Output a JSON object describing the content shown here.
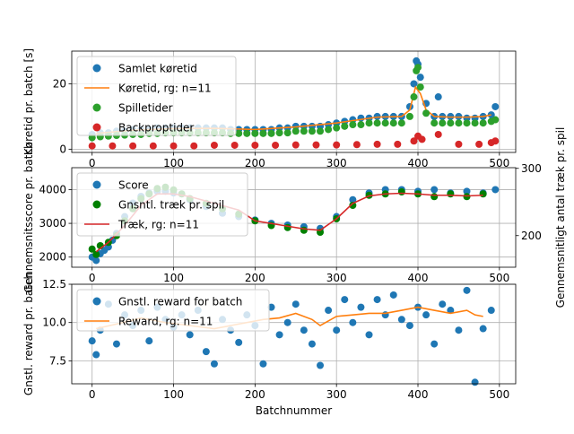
{
  "chart_data": [
    {
      "type": "scatter",
      "xlabel": "",
      "ylabel": "Køretid pr. batch [s]",
      "xlim": [
        -25,
        520
      ],
      "ylim": [
        -1,
        30
      ],
      "xticks": [
        0,
        100,
        200,
        300,
        400,
        500
      ],
      "yticks": [
        0,
        20
      ],
      "grid": true,
      "legend_position": "upper left",
      "series": [
        {
          "name": "Samlet køretid",
          "kind": "points",
          "color": "#1f77b4",
          "x": [
            0,
            10,
            20,
            30,
            40,
            50,
            60,
            70,
            80,
            90,
            100,
            110,
            120,
            130,
            140,
            150,
            160,
            170,
            180,
            190,
            200,
            210,
            220,
            230,
            240,
            250,
            260,
            270,
            280,
            290,
            300,
            310,
            320,
            330,
            340,
            350,
            360,
            370,
            380,
            390,
            395,
            398,
            400,
            403,
            410,
            420,
            425,
            430,
            440,
            450,
            460,
            470,
            480,
            490,
            495
          ],
          "y": [
            4.5,
            5,
            5,
            5.5,
            5.5,
            6,
            6,
            6,
            6.5,
            6.5,
            6.5,
            6.5,
            6.5,
            6.5,
            6.5,
            6.5,
            6.5,
            6,
            6,
            6,
            6,
            6,
            6,
            6.5,
            6.5,
            7,
            7,
            7,
            7,
            7.5,
            8,
            8.5,
            9,
            9.5,
            9.5,
            10,
            10,
            10,
            10,
            13,
            20,
            27,
            26,
            22,
            14,
            10,
            16,
            10,
            10,
            10,
            9.5,
            9.5,
            10,
            10.5,
            13
          ]
        },
        {
          "name": "Køretid, rg: n=11",
          "kind": "line",
          "color": "#ff7f0e",
          "x": [
            5,
            50,
            100,
            150,
            200,
            250,
            300,
            350,
            380,
            390,
            397,
            403,
            410,
            420,
            440,
            460,
            480,
            490
          ],
          "y": [
            4.8,
            5.8,
            6.3,
            6.4,
            6,
            6.8,
            8,
            9.8,
            10,
            12,
            19,
            17,
            12,
            10,
            9.8,
            9.8,
            10,
            10.5
          ]
        },
        {
          "name": "Spilletider",
          "kind": "points",
          "color": "#2ca02c",
          "x": [
            0,
            10,
            20,
            30,
            40,
            50,
            60,
            70,
            80,
            90,
            100,
            110,
            120,
            130,
            140,
            150,
            160,
            170,
            180,
            190,
            200,
            210,
            220,
            230,
            240,
            250,
            260,
            270,
            280,
            290,
            300,
            310,
            320,
            330,
            340,
            350,
            360,
            370,
            380,
            390,
            395,
            398,
            400,
            403,
            410,
            420,
            430,
            440,
            450,
            460,
            470,
            480,
            490,
            495
          ],
          "y": [
            3.5,
            3.8,
            4,
            4.2,
            4.3,
            4.5,
            4.5,
            4.8,
            4.8,
            5,
            5,
            5,
            5,
            5,
            5,
            5,
            5,
            4.8,
            4.8,
            4.8,
            4.8,
            4.8,
            4.8,
            5,
            5,
            5.5,
            5.5,
            5.5,
            5.5,
            6,
            6.5,
            7,
            7.5,
            7.5,
            8,
            8,
            8,
            8,
            8,
            10,
            16,
            24,
            25,
            19,
            11,
            8,
            8,
            8,
            8,
            8,
            8,
            8,
            8.5,
            9
          ]
        },
        {
          "name": "Backproptider",
          "kind": "points",
          "color": "#d62728",
          "x": [
            0,
            25,
            50,
            75,
            100,
            125,
            150,
            175,
            200,
            225,
            250,
            275,
            300,
            325,
            350,
            375,
            395,
            400,
            405,
            425,
            450,
            475,
            490,
            495
          ],
          "y": [
            1,
            1,
            1,
            1,
            1,
            1,
            1.2,
            1.2,
            1.2,
            1.2,
            1.3,
            1.3,
            1.3,
            1.4,
            1.5,
            1.5,
            2.5,
            4,
            3,
            4.5,
            1.5,
            1.5,
            2,
            2.5
          ]
        }
      ]
    },
    {
      "type": "scatter",
      "xlabel": "",
      "ylabel": "Gennemsnitsscore pr. batch",
      "ylabel_right": "Gennemsnitligt antal træk pr. spil",
      "xlim": [
        -25,
        520
      ],
      "ylim": [
        1700,
        4650
      ],
      "ylim_right": [
        153,
        301
      ],
      "xticks": [
        0,
        100,
        200,
        300,
        400,
        500
      ],
      "yticks": [
        2000,
        3000,
        4000
      ],
      "yticks_right": [
        200,
        300
      ],
      "grid": true,
      "legend_position": "upper left",
      "series": [
        {
          "name": "Score",
          "kind": "points",
          "color": "#1f77b4",
          "x": [
            0,
            5,
            10,
            15,
            20,
            25,
            30,
            40,
            50,
            60,
            70,
            80,
            90,
            100,
            120,
            140,
            160,
            180,
            200,
            220,
            240,
            260,
            280,
            300,
            320,
            340,
            360,
            380,
            400,
            420,
            440,
            460,
            480,
            495
          ],
          "y": [
            2000,
            1900,
            2100,
            2200,
            2300,
            2500,
            2700,
            3200,
            3600,
            3800,
            3900,
            3950,
            3950,
            3900,
            3700,
            3500,
            3300,
            3200,
            3100,
            3000,
            2950,
            2900,
            2850,
            3200,
            3700,
            3900,
            4000,
            4000,
            3950,
            4000,
            3900,
            3950,
            3900,
            4000
          ]
        },
        {
          "name": "Gnsntl. træk pr. spil",
          "kind": "points",
          "color": "#008000",
          "x": [
            0,
            5,
            10,
            20,
            30,
            40,
            50,
            60,
            70,
            80,
            90,
            100,
            110,
            120,
            140,
            160,
            180,
            200,
            220,
            240,
            260,
            280,
            300,
            320,
            340,
            360,
            380,
            400,
            420,
            440,
            460,
            480
          ],
          "y": [
            180,
            172,
            185,
            190,
            200,
            222,
            240,
            255,
            262,
            270,
            272,
            268,
            262,
            255,
            248,
            240,
            232,
            222,
            215,
            212,
            208,
            205,
            225,
            245,
            260,
            262,
            265,
            262,
            258,
            262,
            258,
            262
          ]
        },
        {
          "name": "Træk, rg: n=11",
          "kind": "line",
          "color": "#d62728",
          "x": [
            5,
            20,
            40,
            60,
            80,
            100,
            120,
            150,
            180,
            200,
            230,
            260,
            280,
            300,
            320,
            340,
            360,
            380,
            400,
            420,
            440,
            460,
            480
          ],
          "y": [
            176,
            190,
            215,
            245,
            262,
            262,
            258,
            248,
            238,
            222,
            216,
            210,
            208,
            225,
            248,
            259,
            262,
            263,
            262,
            260,
            260,
            259,
            260
          ]
        }
      ]
    },
    {
      "type": "scatter",
      "xlabel": "Batchnummer",
      "ylabel": "Gnstl. reward pr. batch",
      "xlim": [
        -25,
        520
      ],
      "ylim": [
        6,
        12.5
      ],
      "xticks": [
        0,
        100,
        200,
        300,
        400,
        500
      ],
      "yticks": [
        7.5,
        10.0,
        12.5
      ],
      "grid": true,
      "legend_position": "upper left",
      "series": [
        {
          "name": "Gnstl. reward for batch",
          "kind": "points",
          "color": "#1f77b4",
          "x": [
            0,
            5,
            10,
            20,
            30,
            40,
            50,
            60,
            70,
            80,
            90,
            100,
            110,
            120,
            130,
            140,
            150,
            160,
            170,
            180,
            190,
            200,
            210,
            220,
            230,
            240,
            250,
            260,
            270,
            280,
            290,
            300,
            310,
            320,
            330,
            340,
            350,
            360,
            370,
            380,
            390,
            400,
            410,
            420,
            430,
            440,
            450,
            460,
            470,
            480,
            490
          ],
          "y": [
            8.8,
            7.9,
            9.5,
            11.2,
            8.6,
            10.5,
            9.8,
            10.8,
            8.8,
            11,
            10.2,
            9.7,
            10.5,
            9.2,
            10.8,
            8.1,
            7.3,
            10.2,
            9.5,
            8.7,
            10.5,
            9.8,
            7.3,
            11,
            9.2,
            10,
            11.2,
            9.5,
            8.6,
            7.2,
            10.8,
            9.5,
            11.5,
            10,
            11,
            9.2,
            11.5,
            10.5,
            11.8,
            10.2,
            9.8,
            11,
            10.5,
            8.6,
            11.2,
            10.8,
            9.5,
            12.1,
            6.1,
            9.6,
            10.8
          ]
        },
        {
          "name": "Reward, rg: n=11",
          "kind": "line",
          "color": "#ff7f0e",
          "x": [
            5,
            30,
            60,
            90,
            120,
            150,
            180,
            210,
            230,
            250,
            270,
            280,
            290,
            300,
            320,
            340,
            360,
            380,
            400,
            420,
            440,
            460,
            470,
            480
          ],
          "y": [
            9.6,
            9.9,
            10.3,
            10,
            9.8,
            9.6,
            9.9,
            10.2,
            10.3,
            10.6,
            10.2,
            9.8,
            10.1,
            10.4,
            10.5,
            10.6,
            10.6,
            10.8,
            11,
            10.8,
            10.6,
            10.8,
            10.5,
            10.4
          ]
        }
      ]
    }
  ]
}
